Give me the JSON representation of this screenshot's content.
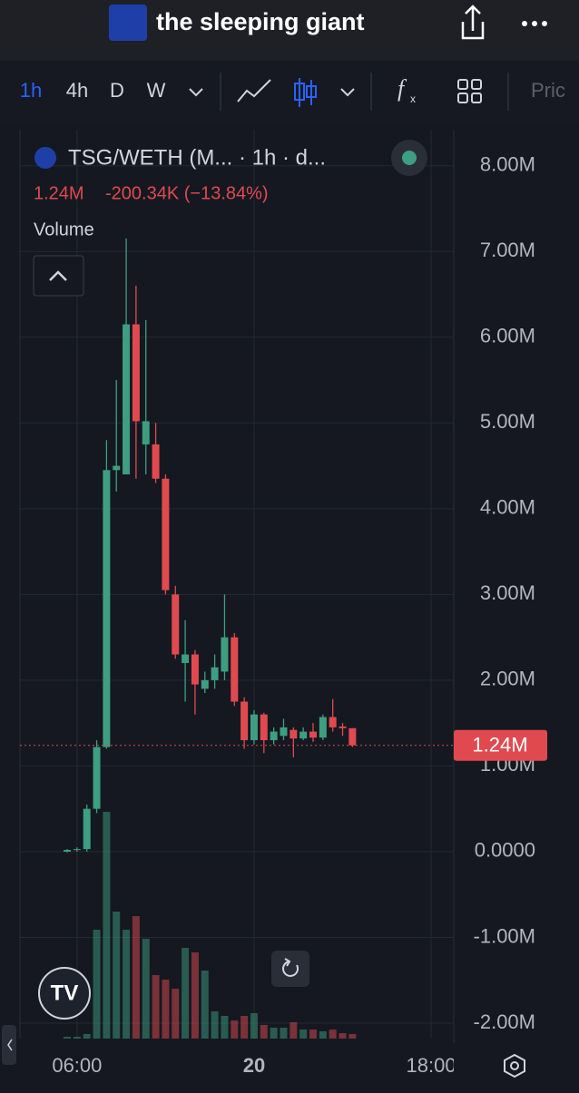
{
  "header": {
    "title": "the sleeping giant"
  },
  "toolbar": {
    "intervals": [
      "1h",
      "4h",
      "D",
      "W"
    ],
    "price_button": "Pric"
  },
  "legend": {
    "symbol": "TSG/WETH (M... · 1h · d...",
    "last": "1.24M",
    "change": "-200.34K (−13.84%)",
    "volume_label": "Volume"
  },
  "chart_data": {
    "type": "candlestick",
    "x": [
      5,
      6,
      7,
      8,
      9,
      10,
      11,
      12,
      13,
      14,
      15,
      16,
      17,
      18,
      19,
      20,
      21,
      22,
      23,
      24,
      25,
      26,
      27,
      28,
      29,
      30,
      31,
      32,
      33,
      34
    ],
    "open": [
      0,
      20000,
      30000,
      500000,
      1220000,
      4450000,
      4400000,
      6150000,
      4750000,
      4750000,
      4350000,
      3000000,
      2200000,
      2300000,
      1900000,
      2000000,
      2100000,
      2500000,
      1750000,
      1300000,
      1600000,
      1300000,
      1350000,
      1420000,
      1320000,
      1400000,
      1330000,
      1570000,
      1460000,
      1440000
    ],
    "high": [
      30000,
      50000,
      550000,
      1300000,
      4800000,
      5500000,
      7150000,
      6600000,
      6200000,
      5000000,
      4400000,
      3100000,
      2700000,
      2350000,
      2100000,
      2300000,
      3000000,
      2550000,
      1800000,
      1650000,
      1620000,
      1450000,
      1550000,
      1450000,
      1450000,
      1500000,
      1600000,
      1780000,
      1500000,
      1440000
    ],
    "low": [
      -10000,
      0,
      0,
      450000,
      1200000,
      4200000,
      4400000,
      4350000,
      4400000,
      4300000,
      3000000,
      2250000,
      1750000,
      1600000,
      1850000,
      1900000,
      2000000,
      1700000,
      1200000,
      1250000,
      1150000,
      1250000,
      1300000,
      1100000,
      1300000,
      1280000,
      1300000,
      1400000,
      1350000,
      1220000
    ],
    "close": [
      20000,
      30000,
      500000,
      1220000,
      4450000,
      4500000,
      6150000,
      5020000,
      5020000,
      4350000,
      3050000,
      2300000,
      2300000,
      1950000,
      2000000,
      2150000,
      2500000,
      1750000,
      1300000,
      1600000,
      1300000,
      1400000,
      1450000,
      1320000,
      1400000,
      1330000,
      1570000,
      1450000,
      1440000,
      1240000
    ],
    "volume": [
      2,
      2,
      5,
      120,
      250,
      140,
      120,
      135,
      110,
      70,
      65,
      55,
      100,
      95,
      75,
      30,
      25,
      20,
      25,
      28,
      15,
      12,
      12,
      18,
      10,
      10,
      8,
      10,
      6,
      5
    ],
    "up_color": "#3d9e82",
    "down_color": "#e04a4f",
    "xlim": [
      0.2,
      44.3
    ],
    "xticks": [
      {
        "value": 6,
        "label": "06:00"
      },
      {
        "value": 24,
        "label": "20"
      },
      {
        "value": 42,
        "label": "18:00"
      }
    ],
    "ylim": [
      -2180000,
      8420000
    ],
    "yticks": [
      {
        "value": 8000000,
        "label": "8.00M"
      },
      {
        "value": 7000000,
        "label": "7.00M"
      },
      {
        "value": 6000000,
        "label": "6.00M"
      },
      {
        "value": 5000000,
        "label": "5.00M"
      },
      {
        "value": 4000000,
        "label": "4.00M"
      },
      {
        "value": 3000000,
        "label": "3.00M"
      },
      {
        "value": 2000000,
        "label": "2.00M"
      },
      {
        "value": 1000000,
        "label": "1.00M"
      },
      {
        "value": 0,
        "label": "0.0000"
      },
      {
        "value": -1000000,
        "label": "-1.00M"
      },
      {
        "value": -2000000,
        "label": "-2.00M"
      }
    ],
    "last_price": {
      "value": 1240000,
      "label": "1.24M"
    },
    "grid": true
  }
}
